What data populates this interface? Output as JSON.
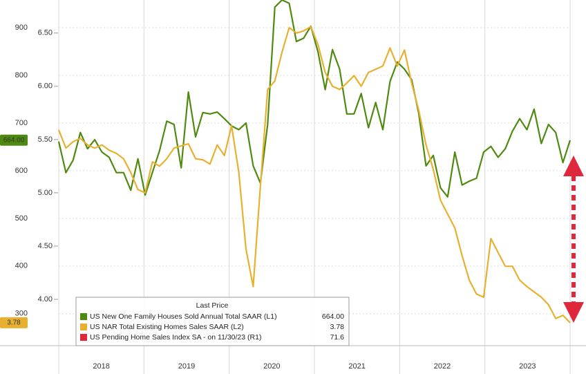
{
  "chart_data": {
    "type": "line",
    "x_labels": [
      "2018",
      "2019",
      "2020",
      "2021",
      "2022",
      "2023"
    ],
    "ylim": [
      233,
      958
    ],
    "yticks": [
      300,
      400,
      500,
      600,
      700,
      800,
      900
    ],
    "y2lim": [
      3.565,
      6.81
    ],
    "y2ticks": [
      {
        "value": 4,
        "label": "4.00"
      },
      {
        "value": 4.5,
        "label": "4.50"
      },
      {
        "value": 5,
        "label": "5.00"
      },
      {
        "value": 5.5,
        "label": "5.50"
      },
      {
        "value": 6,
        "label": "6.00"
      },
      {
        "value": 6.5,
        "label": "6.50"
      }
    ],
    "grid": true,
    "legend_title": "Last Price",
    "series": [
      {
        "name": "US New One Family Houses Sold Annual Total SAAR (L1)",
        "color": "#4f8a10",
        "last": "664.00",
        "values": [
          661,
          596,
          622,
          680,
          646,
          665,
          639,
          628,
          596,
          596,
          559,
          625,
          549,
          596,
          642,
          704,
          697,
          606,
          765,
          671,
          722,
          719,
          723,
          709,
          694,
          686,
          700,
          610,
          574,
          697,
          943,
          958,
          951,
          871,
          878,
          903,
          849,
          770,
          854,
          813,
          719,
          719,
          762,
          690,
          743,
          686,
          787,
          828,
          813,
          791,
          719,
          610,
          632,
          564,
          545,
          639,
          570,
          578,
          584,
          639,
          651,
          628,
          646,
          683,
          709,
          686,
          729,
          657,
          697,
          680,
          617,
          664
        ]
      },
      {
        "name": "US NAR Total Existing Homes Sales SAAR  (L2)",
        "color": "#e8b030",
        "axis": "y2",
        "last": "3.78",
        "values": [
          5.59,
          5.42,
          5.48,
          5.51,
          5.45,
          5.42,
          5.45,
          5.4,
          5.37,
          5.32,
          5.19,
          5.03,
          5.0,
          5.29,
          5.25,
          5.32,
          5.42,
          5.44,
          5.46,
          5.32,
          5.31,
          5.27,
          5.45,
          5.35,
          5.63,
          5.19,
          4.47,
          4.12,
          5.06,
          5.97,
          6.05,
          6.32,
          6.55,
          6.5,
          6.52,
          6.56,
          6.39,
          6.13,
          6.0,
          5.97,
          6.03,
          6.1,
          6.0,
          6.13,
          6.16,
          6.19,
          6.36,
          6.19,
          6.34,
          6.03,
          5.77,
          5.45,
          5.22,
          4.93,
          4.8,
          4.67,
          4.41,
          4.18,
          4.05,
          4.02,
          4.57,
          4.44,
          4.31,
          4.31,
          4.18,
          4.12,
          4.07,
          4.02,
          3.95,
          3.82,
          3.85,
          3.78
        ]
      },
      {
        "name": "US Pending Home Sales Index SA - on 11/30/23 (R1)",
        "color": "#e0283c",
        "last": "71.6"
      }
    ]
  }
}
